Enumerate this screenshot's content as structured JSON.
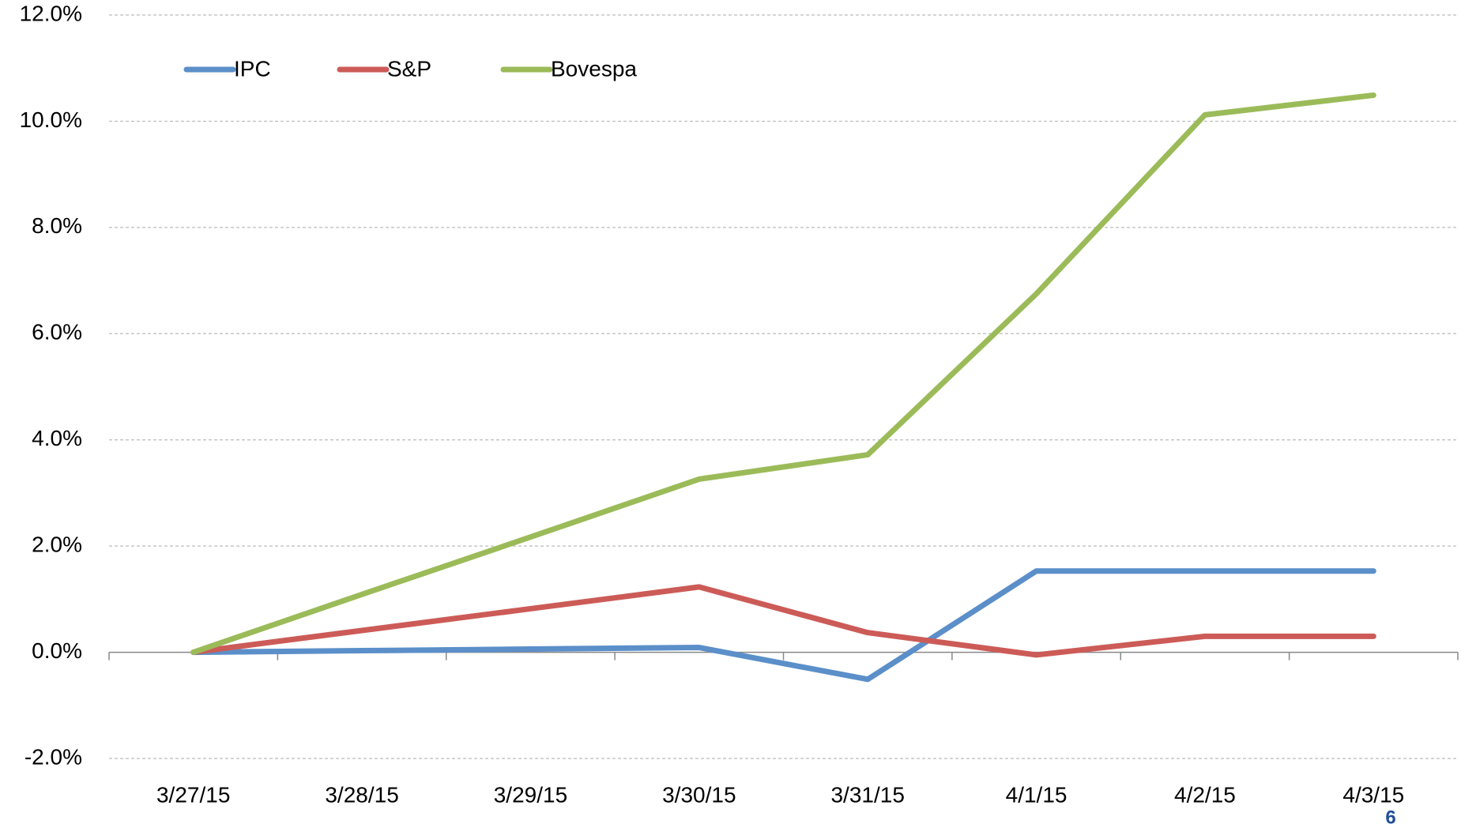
{
  "chart_data": {
    "type": "line",
    "categories": [
      "3/27/15",
      "3/28/15",
      "3/29/15",
      "3/30/15",
      "3/31/15",
      "4/1/15",
      "4/2/15",
      "4/3/15"
    ],
    "series": [
      {
        "name": "IPC",
        "color": "#5b8fc9",
        "values": [
          0,
          0.03,
          0.06,
          0.09,
          -0.51,
          1.53,
          1.53,
          1.53
        ]
      },
      {
        "name": "S&P",
        "color": "#cc5b57",
        "values": [
          0,
          0.41,
          0.82,
          1.23,
          0.37,
          -0.05,
          0.3,
          0.3
        ]
      },
      {
        "name": "Bovespa",
        "color": "#9bbb59",
        "values": [
          0,
          1.09,
          2.17,
          3.26,
          3.72,
          6.75,
          10.12,
          10.49
        ]
      }
    ],
    "ylim": [
      -2,
      12
    ],
    "yticks": [
      {
        "value": -2,
        "label": "-2.0%"
      },
      {
        "value": 0,
        "label": "0.0%"
      },
      {
        "value": 2,
        "label": "2.0%"
      },
      {
        "value": 4,
        "label": "4.0%"
      },
      {
        "value": 6,
        "label": "6.0%"
      },
      {
        "value": 8,
        "label": "8.0%"
      },
      {
        "value": 10,
        "label": "10.0%"
      },
      {
        "value": 12,
        "label": "12.0%"
      }
    ],
    "grid": true,
    "legend": "top-left"
  },
  "page_number": "6"
}
